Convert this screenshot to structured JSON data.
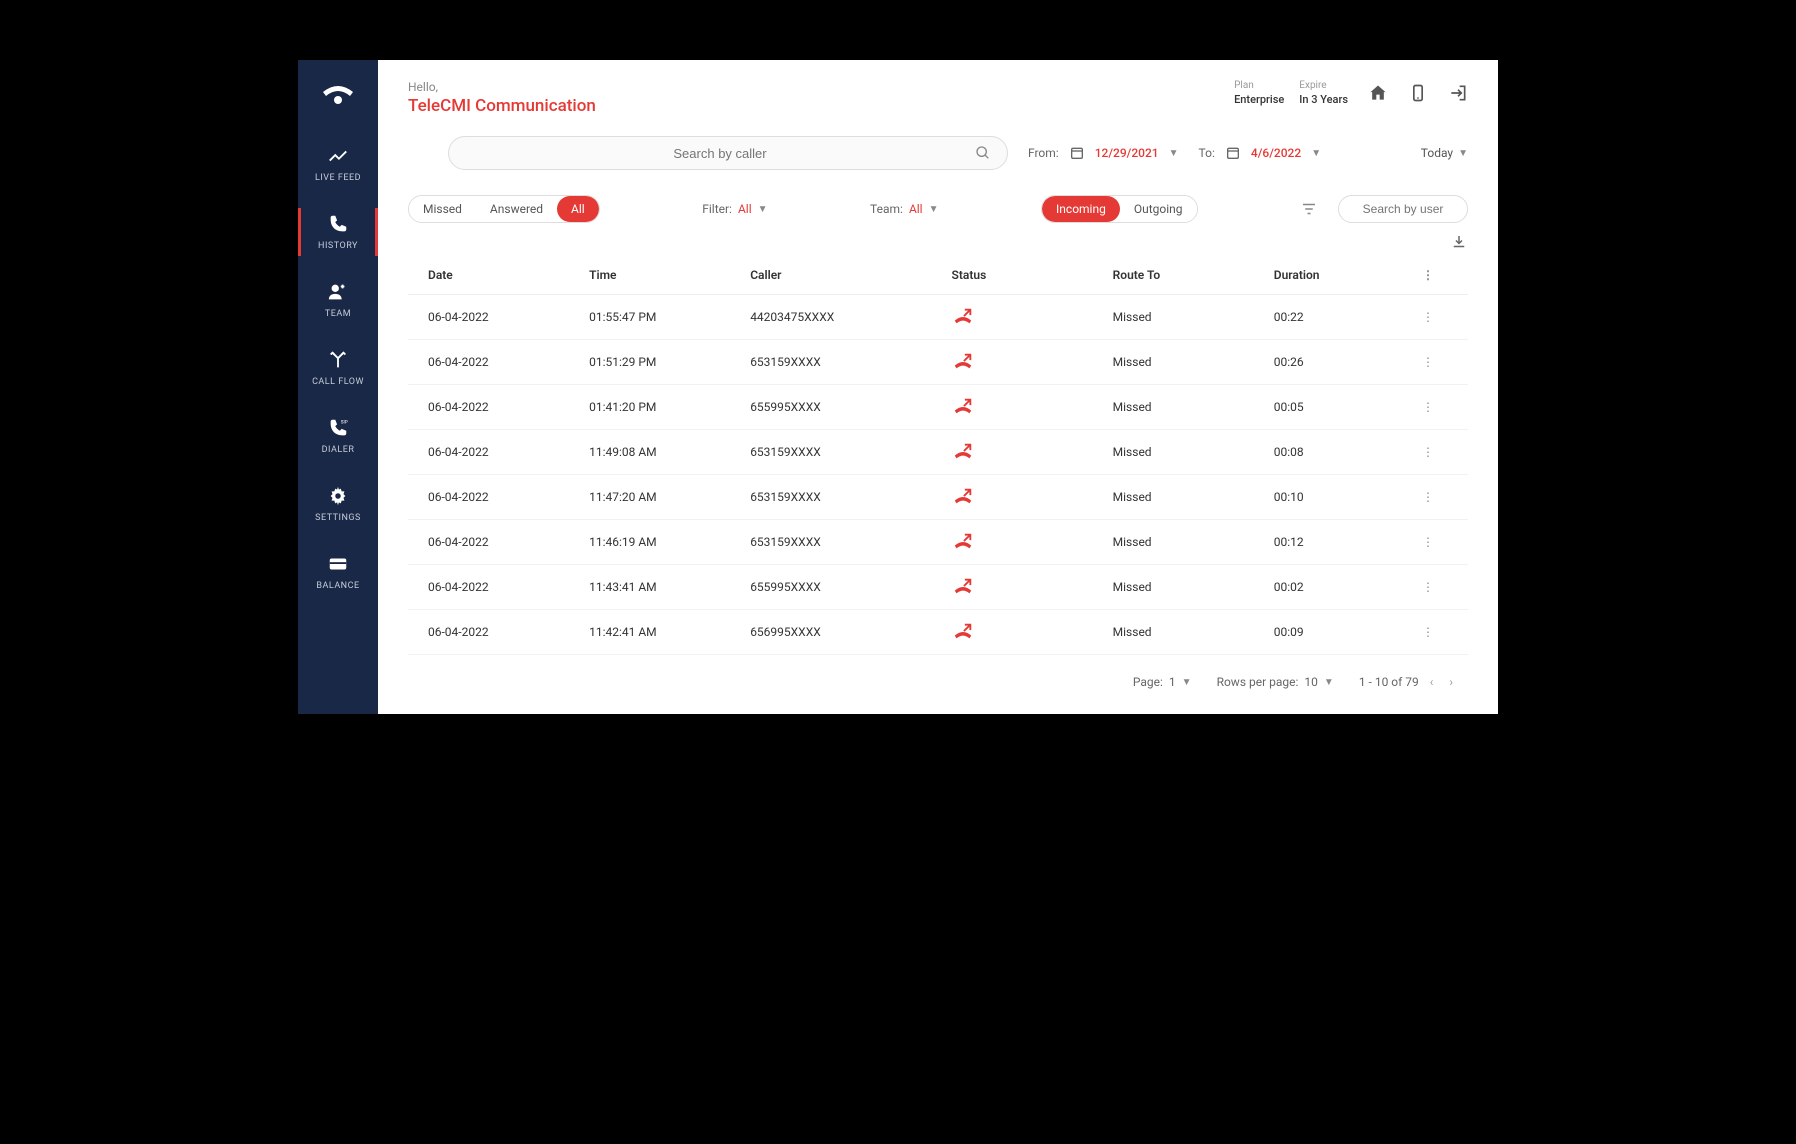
{
  "header": {
    "greeting": "Hello,",
    "company": "TeleCMI Communication",
    "plan_label": "Plan",
    "plan_value": "Enterprise",
    "expire_label": "Expire",
    "expire_value": "In 3 Years"
  },
  "sidebar": {
    "items": [
      {
        "label": "LIVE FEED"
      },
      {
        "label": "HISTORY"
      },
      {
        "label": "TEAM"
      },
      {
        "label": "CALL FLOW"
      },
      {
        "label": "DIALER"
      },
      {
        "label": "SETTINGS"
      },
      {
        "label": "BALANCE"
      }
    ]
  },
  "search": {
    "placeholder": "Search by caller",
    "from_label": "From:",
    "from_date": "12/29/2021",
    "to_label": "To:",
    "to_date": "4/6/2022",
    "today": "Today"
  },
  "filters": {
    "status_tabs": [
      "Missed",
      "Answered",
      "All"
    ],
    "filter_label": "Filter:",
    "filter_value": "All",
    "team_label": "Team:",
    "team_value": "All",
    "direction_tabs": [
      "Incoming",
      "Outgoing"
    ],
    "user_search_placeholder": "Search by user"
  },
  "table": {
    "columns": [
      "Date",
      "Time",
      "Caller",
      "Status",
      "Route To",
      "Duration"
    ],
    "rows": [
      {
        "date": "06-04-2022",
        "time": "01:55:47 PM",
        "caller": "44203475XXXX",
        "route": "Missed",
        "duration": "00:22"
      },
      {
        "date": "06-04-2022",
        "time": "01:51:29 PM",
        "caller": "653159XXXX",
        "route": "Missed",
        "duration": "00:26"
      },
      {
        "date": "06-04-2022",
        "time": "01:41:20 PM",
        "caller": "655995XXXX",
        "route": "Missed",
        "duration": "00:05"
      },
      {
        "date": "06-04-2022",
        "time": "11:49:08 AM",
        "caller": "653159XXXX",
        "route": "Missed",
        "duration": "00:08"
      },
      {
        "date": "06-04-2022",
        "time": "11:47:20 AM",
        "caller": "653159XXXX",
        "route": "Missed",
        "duration": "00:10"
      },
      {
        "date": "06-04-2022",
        "time": "11:46:19 AM",
        "caller": "653159XXXX",
        "route": "Missed",
        "duration": "00:12"
      },
      {
        "date": "06-04-2022",
        "time": "11:43:41 AM",
        "caller": "655995XXXX",
        "route": "Missed",
        "duration": "00:02"
      },
      {
        "date": "06-04-2022",
        "time": "11:42:41 AM",
        "caller": "656995XXXX",
        "route": "Missed",
        "duration": "00:09"
      }
    ]
  },
  "pagination": {
    "page_label": "Page:",
    "page_value": "1",
    "rows_label": "Rows per page:",
    "rows_value": "10",
    "range": "1 - 10 of 79"
  },
  "colors": {
    "sidebar_bg": "#1a2847",
    "accent": "#e53935",
    "text_muted": "#888",
    "border": "#ddd"
  }
}
